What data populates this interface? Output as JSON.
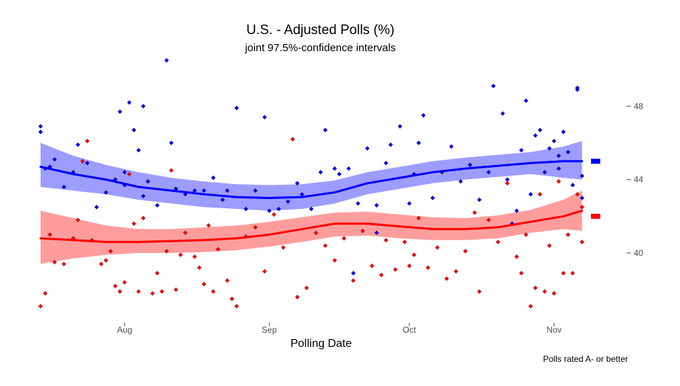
{
  "chart_data": {
    "type": "scatter",
    "title": "U.S. - Adjusted Polls (%)",
    "subtitle": "joint 97.5%-confidence intervals",
    "xlabel": "Polling Date",
    "ylabel": "",
    "caption": "Polls rated A- or better",
    "x_ticks": [
      "Aug",
      "Sep",
      "Oct",
      "Nov"
    ],
    "y_ticks": [
      40,
      44,
      48
    ],
    "xlim": [
      "2016-07-14",
      "2016-11-08"
    ],
    "ylim": [
      36.2,
      50.3
    ],
    "grid": false,
    "series": [
      {
        "color": "#0000ff",
        "band_color": "#8c8cff",
        "end_value": 45.0,
        "trend": [
          {
            "x": "2016-07-14",
            "y": 44.7,
            "lo": 43.6,
            "hi": 46.0
          },
          {
            "x": "2016-07-21",
            "y": 44.3,
            "lo": 43.4,
            "hi": 45.3
          },
          {
            "x": "2016-07-28",
            "y": 44.0,
            "lo": 43.2,
            "hi": 44.8
          },
          {
            "x": "2016-08-04",
            "y": 43.6,
            "lo": 42.9,
            "hi": 44.4
          },
          {
            "x": "2016-08-11",
            "y": 43.4,
            "lo": 42.7,
            "hi": 44.1
          },
          {
            "x": "2016-08-18",
            "y": 43.2,
            "lo": 42.5,
            "hi": 43.9
          },
          {
            "x": "2016-08-25",
            "y": 43.05,
            "lo": 42.4,
            "hi": 43.75
          },
          {
            "x": "2016-09-01",
            "y": 43.0,
            "lo": 42.3,
            "hi": 43.7
          },
          {
            "x": "2016-09-08",
            "y": 43.05,
            "lo": 42.4,
            "hi": 43.75
          },
          {
            "x": "2016-09-15",
            "y": 43.3,
            "lo": 42.7,
            "hi": 43.95
          },
          {
            "x": "2016-09-22",
            "y": 43.8,
            "lo": 43.2,
            "hi": 44.4
          },
          {
            "x": "2016-09-29",
            "y": 44.1,
            "lo": 43.5,
            "hi": 44.7
          },
          {
            "x": "2016-10-06",
            "y": 44.4,
            "lo": 43.8,
            "hi": 45.0
          },
          {
            "x": "2016-10-13",
            "y": 44.6,
            "lo": 44.0,
            "hi": 45.2
          },
          {
            "x": "2016-10-20",
            "y": 44.75,
            "lo": 44.15,
            "hi": 45.35
          },
          {
            "x": "2016-10-27",
            "y": 44.9,
            "lo": 44.3,
            "hi": 45.5
          },
          {
            "x": "2016-11-03",
            "y": 45.0,
            "lo": 44.1,
            "hi": 45.8
          },
          {
            "x": "2016-11-07",
            "y": 45.0,
            "lo": 44.0,
            "hi": 46.1
          }
        ],
        "points": [
          {
            "x": "2016-07-14",
            "y": 46.9
          },
          {
            "x": "2016-07-14",
            "y": 46.6
          },
          {
            "x": "2016-07-15",
            "y": 44.6
          },
          {
            "x": "2016-07-16",
            "y": 44.7
          },
          {
            "x": "2016-07-17",
            "y": 45.1
          },
          {
            "x": "2016-07-19",
            "y": 43.6
          },
          {
            "x": "2016-07-21",
            "y": 44.4
          },
          {
            "x": "2016-07-22",
            "y": 45.9
          },
          {
            "x": "2016-07-24",
            "y": 44.9
          },
          {
            "x": "2016-07-26",
            "y": 42.5
          },
          {
            "x": "2016-07-28",
            "y": 43.3
          },
          {
            "x": "2016-07-30",
            "y": 44.0
          },
          {
            "x": "2016-07-31",
            "y": 47.7
          },
          {
            "x": "2016-08-01",
            "y": 43.7
          },
          {
            "x": "2016-08-01",
            "y": 44.4
          },
          {
            "x": "2016-08-02",
            "y": 48.2
          },
          {
            "x": "2016-08-03",
            "y": 46.7
          },
          {
            "x": "2016-08-04",
            "y": 45.6
          },
          {
            "x": "2016-08-05",
            "y": 43.1
          },
          {
            "x": "2016-08-05",
            "y": 48.0
          },
          {
            "x": "2016-08-06",
            "y": 43.9
          },
          {
            "x": "2016-08-08",
            "y": 42.6
          },
          {
            "x": "2016-08-10",
            "y": 50.5
          },
          {
            "x": "2016-08-11",
            "y": 46.0
          },
          {
            "x": "2016-08-12",
            "y": 43.5
          },
          {
            "x": "2016-08-14",
            "y": 43.2
          },
          {
            "x": "2016-08-16",
            "y": 43.4
          },
          {
            "x": "2016-08-18",
            "y": 43.4
          },
          {
            "x": "2016-08-20",
            "y": 44.1
          },
          {
            "x": "2016-08-22",
            "y": 42.9
          },
          {
            "x": "2016-08-23",
            "y": 43.4
          },
          {
            "x": "2016-08-25",
            "y": 47.9
          },
          {
            "x": "2016-08-27",
            "y": 42.4
          },
          {
            "x": "2016-08-29",
            "y": 43.4
          },
          {
            "x": "2016-08-31",
            "y": 47.4
          },
          {
            "x": "2016-09-01",
            "y": 42.3
          },
          {
            "x": "2016-09-03",
            "y": 42.4
          },
          {
            "x": "2016-09-05",
            "y": 42.8
          },
          {
            "x": "2016-09-07",
            "y": 43.8
          },
          {
            "x": "2016-09-08",
            "y": 43.2
          },
          {
            "x": "2016-09-10",
            "y": 42.4
          },
          {
            "x": "2016-09-12",
            "y": 44.4
          },
          {
            "x": "2016-09-13",
            "y": 46.7
          },
          {
            "x": "2016-09-15",
            "y": 44.6
          },
          {
            "x": "2016-09-16",
            "y": 44.3
          },
          {
            "x": "2016-09-18",
            "y": 44.6
          },
          {
            "x": "2016-09-20",
            "y": 42.7
          },
          {
            "x": "2016-09-22",
            "y": 45.7
          },
          {
            "x": "2016-09-24",
            "y": 42.6
          },
          {
            "x": "2016-09-26",
            "y": 44.9
          },
          {
            "x": "2016-09-27",
            "y": 45.9
          },
          {
            "x": "2016-09-29",
            "y": 46.9
          },
          {
            "x": "2016-10-01",
            "y": 42.7
          },
          {
            "x": "2016-10-02",
            "y": 44.3
          },
          {
            "x": "2016-10-03",
            "y": 46.0
          },
          {
            "x": "2016-10-04",
            "y": 47.5
          },
          {
            "x": "2016-10-06",
            "y": 43.0
          },
          {
            "x": "2016-10-08",
            "y": 44.4
          },
          {
            "x": "2016-10-10",
            "y": 45.8
          },
          {
            "x": "2016-10-12",
            "y": 43.9
          },
          {
            "x": "2016-10-14",
            "y": 44.8
          },
          {
            "x": "2016-10-16",
            "y": 42.9
          },
          {
            "x": "2016-10-18",
            "y": 44.4
          },
          {
            "x": "2016-10-19",
            "y": 49.1
          },
          {
            "x": "2016-10-21",
            "y": 47.6
          },
          {
            "x": "2016-10-22",
            "y": 44.0
          },
          {
            "x": "2016-10-24",
            "y": 42.3
          },
          {
            "x": "2016-10-25",
            "y": 45.6
          },
          {
            "x": "2016-10-26",
            "y": 48.3
          },
          {
            "x": "2016-10-27",
            "y": 43.2
          },
          {
            "x": "2016-10-28",
            "y": 46.4
          },
          {
            "x": "2016-10-29",
            "y": 46.7
          },
          {
            "x": "2016-10-30",
            "y": 44.4
          },
          {
            "x": "2016-10-31",
            "y": 45.7
          },
          {
            "x": "2016-11-01",
            "y": 46.1
          },
          {
            "x": "2016-11-02",
            "y": 44.6
          },
          {
            "x": "2016-11-02",
            "y": 45.3
          },
          {
            "x": "2016-11-03",
            "y": 46.6
          },
          {
            "x": "2016-11-04",
            "y": 45.5
          },
          {
            "x": "2016-11-05",
            "y": 43.7
          },
          {
            "x": "2016-11-06",
            "y": 48.9
          },
          {
            "x": "2016-11-06",
            "y": 49.0
          },
          {
            "x": "2016-11-07",
            "y": 44.2
          },
          {
            "x": "2016-11-07",
            "y": 43.0
          },
          {
            "x": "2016-09-19",
            "y": 38.9
          },
          {
            "x": "2016-09-24",
            "y": 41.1
          },
          {
            "x": "2016-10-23",
            "y": 41.6
          }
        ]
      },
      {
        "color": "#ff0000",
        "band_color": "#ff8c8c",
        "end_value": 42.0,
        "trend": [
          {
            "x": "2016-07-14",
            "y": 40.8,
            "lo": 39.4,
            "hi": 42.3
          },
          {
            "x": "2016-07-21",
            "y": 40.7,
            "lo": 39.7,
            "hi": 41.9
          },
          {
            "x": "2016-07-28",
            "y": 40.6,
            "lo": 39.9,
            "hi": 41.5
          },
          {
            "x": "2016-08-04",
            "y": 40.6,
            "lo": 40.0,
            "hi": 41.3
          },
          {
            "x": "2016-08-11",
            "y": 40.65,
            "lo": 40.0,
            "hi": 41.3
          },
          {
            "x": "2016-08-18",
            "y": 40.7,
            "lo": 40.05,
            "hi": 41.4
          },
          {
            "x": "2016-08-25",
            "y": 40.8,
            "lo": 40.15,
            "hi": 41.5
          },
          {
            "x": "2016-09-01",
            "y": 41.0,
            "lo": 40.35,
            "hi": 41.7
          },
          {
            "x": "2016-09-08",
            "y": 41.3,
            "lo": 40.6,
            "hi": 41.95
          },
          {
            "x": "2016-09-15",
            "y": 41.6,
            "lo": 40.9,
            "hi": 42.2
          },
          {
            "x": "2016-09-22",
            "y": 41.6,
            "lo": 40.95,
            "hi": 42.25
          },
          {
            "x": "2016-09-29",
            "y": 41.45,
            "lo": 40.8,
            "hi": 42.1
          },
          {
            "x": "2016-10-06",
            "y": 41.3,
            "lo": 40.7,
            "hi": 41.95
          },
          {
            "x": "2016-10-13",
            "y": 41.3,
            "lo": 40.7,
            "hi": 41.9
          },
          {
            "x": "2016-10-20",
            "y": 41.4,
            "lo": 40.8,
            "hi": 42.05
          },
          {
            "x": "2016-10-27",
            "y": 41.7,
            "lo": 41.1,
            "hi": 42.35
          },
          {
            "x": "2016-11-03",
            "y": 42.0,
            "lo": 41.3,
            "hi": 42.9
          },
          {
            "x": "2016-11-07",
            "y": 42.3,
            "lo": 41.2,
            "hi": 43.4
          }
        ],
        "points": [
          {
            "x": "2016-07-14",
            "y": 37.1
          },
          {
            "x": "2016-07-15",
            "y": 37.8
          },
          {
            "x": "2016-07-16",
            "y": 41.0
          },
          {
            "x": "2016-07-17",
            "y": 39.5
          },
          {
            "x": "2016-07-19",
            "y": 39.4
          },
          {
            "x": "2016-07-21",
            "y": 40.8
          },
          {
            "x": "2016-07-22",
            "y": 41.8
          },
          {
            "x": "2016-07-23",
            "y": 45.0
          },
          {
            "x": "2016-07-24",
            "y": 46.1
          },
          {
            "x": "2016-07-25",
            "y": 40.7
          },
          {
            "x": "2016-07-27",
            "y": 39.4
          },
          {
            "x": "2016-07-28",
            "y": 39.6
          },
          {
            "x": "2016-07-29",
            "y": 40.1
          },
          {
            "x": "2016-07-30",
            "y": 38.2
          },
          {
            "x": "2016-07-31",
            "y": 37.9
          },
          {
            "x": "2016-08-01",
            "y": 38.4
          },
          {
            "x": "2016-08-02",
            "y": 44.3
          },
          {
            "x": "2016-08-03",
            "y": 41.6
          },
          {
            "x": "2016-08-04",
            "y": 37.9
          },
          {
            "x": "2016-08-05",
            "y": 41.9
          },
          {
            "x": "2016-08-07",
            "y": 37.8
          },
          {
            "x": "2016-08-08",
            "y": 38.9
          },
          {
            "x": "2016-08-09",
            "y": 37.9
          },
          {
            "x": "2016-08-10",
            "y": 40.1
          },
          {
            "x": "2016-08-11",
            "y": 44.5
          },
          {
            "x": "2016-08-12",
            "y": 38.0
          },
          {
            "x": "2016-08-13",
            "y": 39.9
          },
          {
            "x": "2016-08-14",
            "y": 41.1
          },
          {
            "x": "2016-08-16",
            "y": 39.8
          },
          {
            "x": "2016-08-17",
            "y": 39.2
          },
          {
            "x": "2016-08-18",
            "y": 38.3
          },
          {
            "x": "2016-08-19",
            "y": 41.5
          },
          {
            "x": "2016-08-20",
            "y": 37.9
          },
          {
            "x": "2016-08-21",
            "y": 40.2
          },
          {
            "x": "2016-08-23",
            "y": 38.5
          },
          {
            "x": "2016-08-24",
            "y": 37.5
          },
          {
            "x": "2016-08-25",
            "y": 37.1
          },
          {
            "x": "2016-08-27",
            "y": 40.9
          },
          {
            "x": "2016-08-29",
            "y": 41.4
          },
          {
            "x": "2016-08-31",
            "y": 39.0
          },
          {
            "x": "2016-09-02",
            "y": 42.1
          },
          {
            "x": "2016-09-04",
            "y": 40.3
          },
          {
            "x": "2016-09-06",
            "y": 46.2
          },
          {
            "x": "2016-09-07",
            "y": 37.6
          },
          {
            "x": "2016-09-09",
            "y": 38.1
          },
          {
            "x": "2016-09-11",
            "y": 41.1
          },
          {
            "x": "2016-09-13",
            "y": 40.4
          },
          {
            "x": "2016-09-15",
            "y": 39.6
          },
          {
            "x": "2016-09-17",
            "y": 40.8
          },
          {
            "x": "2016-09-19",
            "y": 38.5
          },
          {
            "x": "2016-09-21",
            "y": 41.2
          },
          {
            "x": "2016-09-23",
            "y": 39.3
          },
          {
            "x": "2016-09-25",
            "y": 38.8
          },
          {
            "x": "2016-09-26",
            "y": 40.7
          },
          {
            "x": "2016-09-28",
            "y": 39.1
          },
          {
            "x": "2016-09-30",
            "y": 40.6
          },
          {
            "x": "2016-10-01",
            "y": 39.3
          },
          {
            "x": "2016-10-02",
            "y": 39.9
          },
          {
            "x": "2016-10-03",
            "y": 41.9
          },
          {
            "x": "2016-10-05",
            "y": 39.2
          },
          {
            "x": "2016-10-07",
            "y": 40.3
          },
          {
            "x": "2016-10-09",
            "y": 38.6
          },
          {
            "x": "2016-10-11",
            "y": 39.0
          },
          {
            "x": "2016-10-13",
            "y": 40.1
          },
          {
            "x": "2016-10-15",
            "y": 42.2
          },
          {
            "x": "2016-10-16",
            "y": 37.9
          },
          {
            "x": "2016-10-18",
            "y": 41.8
          },
          {
            "x": "2016-10-20",
            "y": 40.6
          },
          {
            "x": "2016-10-22",
            "y": 43.8
          },
          {
            "x": "2016-10-24",
            "y": 39.8
          },
          {
            "x": "2016-10-25",
            "y": 38.9
          },
          {
            "x": "2016-10-26",
            "y": 41.0
          },
          {
            "x": "2016-10-27",
            "y": 37.1
          },
          {
            "x": "2016-10-28",
            "y": 38.1
          },
          {
            "x": "2016-10-29",
            "y": 43.2
          },
          {
            "x": "2016-10-30",
            "y": 37.9
          },
          {
            "x": "2016-10-31",
            "y": 40.4
          },
          {
            "x": "2016-11-01",
            "y": 37.8
          },
          {
            "x": "2016-11-02",
            "y": 43.9
          },
          {
            "x": "2016-11-03",
            "y": 38.9
          },
          {
            "x": "2016-11-04",
            "y": 41.0
          },
          {
            "x": "2016-11-05",
            "y": 38.9
          },
          {
            "x": "2016-11-06",
            "y": 43.2
          },
          {
            "x": "2016-11-07",
            "y": 40.6
          },
          {
            "x": "2016-11-07",
            "y": 42.5
          }
        ]
      }
    ]
  }
}
